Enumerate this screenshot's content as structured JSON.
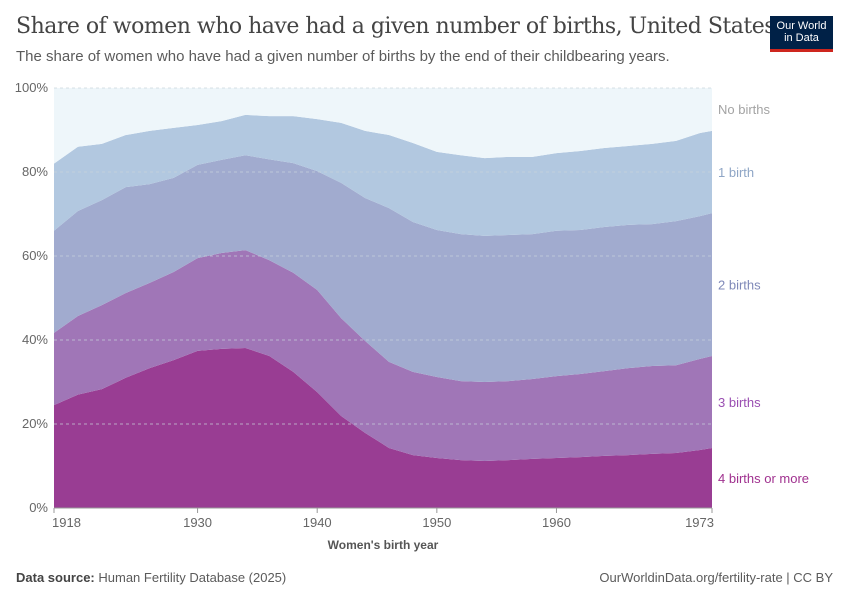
{
  "header": {
    "title": "Share of women who have had a given number of births, United States",
    "subtitle": "The share of women who have had a given number of births by the end of their childbearing years.",
    "logo_line1": "Our World",
    "logo_line2": "in Data"
  },
  "footer": {
    "source_label": "Data source:",
    "source": "Human Fertility Database (2025)",
    "link": "OurWorldinData.org/fertility-rate | CC BY"
  },
  "chart_data": {
    "type": "area",
    "stacked": true,
    "title": "Share of women who have had a given number of births, United States",
    "xlabel": "Women's birth year",
    "ylabel": "",
    "xlim": [
      1918,
      1973
    ],
    "ylim": [
      0,
      100
    ],
    "x_ticks": [
      "1918",
      "1930",
      "1940",
      "1950",
      "1960",
      "1973"
    ],
    "y_ticks": [
      "0%",
      "20%",
      "40%",
      "60%",
      "80%",
      "100%"
    ],
    "grid": "horizontal dashed",
    "legend": "right (inline labels)",
    "x": [
      1918,
      1920,
      1922,
      1924,
      1926,
      1928,
      1930,
      1932,
      1934,
      1936,
      1938,
      1940,
      1942,
      1944,
      1946,
      1948,
      1950,
      1952,
      1954,
      1956,
      1958,
      1960,
      1962,
      1964,
      1966,
      1968,
      1970,
      1972,
      1973
    ],
    "series": [
      {
        "name": "4 births or more",
        "color": "#993d93",
        "label_color": "#a0318f",
        "values": [
          24.5,
          27,
          28.3,
          31,
          33.3,
          35.2,
          37.4,
          37.9,
          38.1,
          36.2,
          32.4,
          27.6,
          21.9,
          17.9,
          14.3,
          12.6,
          11.9,
          11.4,
          11.2,
          11.4,
          11.7,
          11.9,
          12.1,
          12.4,
          12.6,
          12.9,
          13.1,
          13.8,
          14.3
        ]
      },
      {
        "name": "3 births",
        "color": "#a076b7",
        "label_color": "#9a4fb2",
        "values": [
          17.2,
          18.7,
          20,
          20.2,
          20.3,
          21,
          22.1,
          22.8,
          23.3,
          22.8,
          23.6,
          24.3,
          23.3,
          21.9,
          20.5,
          19.8,
          19.3,
          18.8,
          18.8,
          18.8,
          19,
          19.5,
          19.8,
          20.2,
          20.7,
          20.9,
          20.9,
          21.7,
          21.9
        ]
      },
      {
        "name": "2 births",
        "color": "#a1abcf",
        "label_color": "#7f89b8",
        "values": [
          24.3,
          25,
          25,
          25.2,
          23.5,
          22.4,
          22.2,
          22.2,
          22.6,
          24,
          26.1,
          28.3,
          32.2,
          34,
          36.6,
          35.7,
          35,
          35,
          34.8,
          34.8,
          34.5,
          34.6,
          34.3,
          34.3,
          34.1,
          33.8,
          34.3,
          34,
          34
        ]
      },
      {
        "name": "1 birth",
        "color": "#b2c8e0",
        "label_color": "#8fa6c6",
        "values": [
          16,
          15.3,
          13.4,
          12.4,
          12.7,
          11.9,
          9.5,
          9.2,
          9.6,
          10.3,
          11.2,
          12.4,
          14.3,
          16,
          17.4,
          18.8,
          18.6,
          18.8,
          18.5,
          18.6,
          18.4,
          18.5,
          18.8,
          18.8,
          18.8,
          19.1,
          19.1,
          19.8,
          19.6
        ]
      },
      {
        "name": "No births",
        "color": "#eef6fa",
        "label_color": "#a3a3a3",
        "values": [
          18,
          14,
          13.3,
          11.2,
          10.2,
          9.5,
          8.8,
          7.9,
          6.4,
          6.7,
          6.7,
          7.4,
          8.3,
          10.2,
          11.2,
          13.1,
          15.2,
          16,
          16.7,
          16.4,
          16.4,
          15.5,
          15,
          14.3,
          13.8,
          13.3,
          12.6,
          10.7,
          10.2
        ]
      }
    ]
  }
}
